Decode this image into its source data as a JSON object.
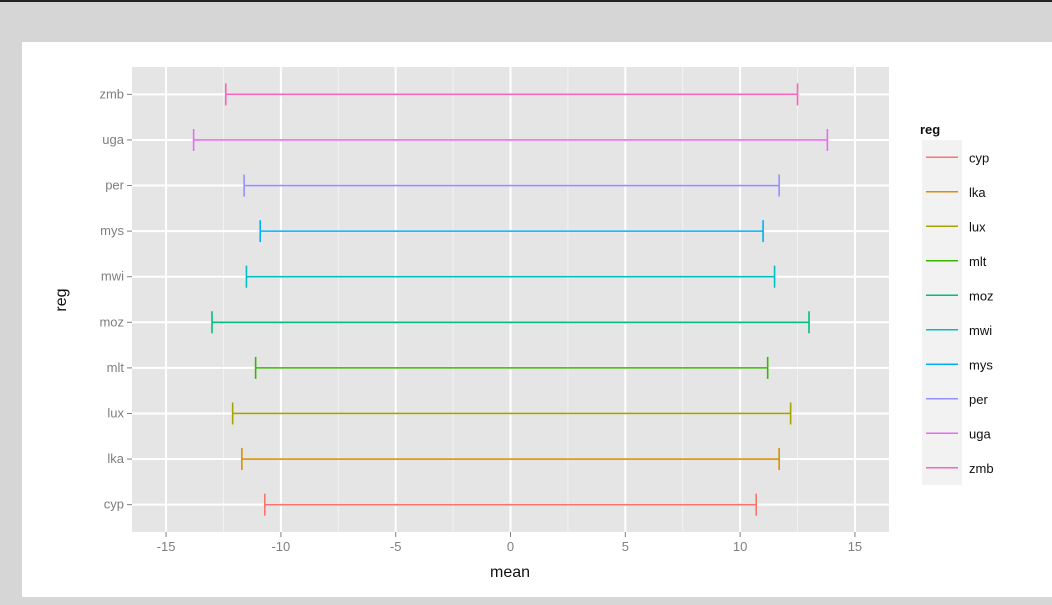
{
  "chart_data": {
    "type": "errorbar",
    "title": "",
    "xlabel": "mean",
    "ylabel": "reg",
    "xlim": [
      -15,
      15
    ],
    "x_ticks": [
      -15,
      -10,
      -5,
      0,
      5,
      10,
      15
    ],
    "grid": true,
    "legend": {
      "title": "reg",
      "position": "right"
    },
    "categories": [
      "cyp",
      "lka",
      "lux",
      "mlt",
      "moz",
      "mwi",
      "mys",
      "per",
      "uga",
      "zmb"
    ],
    "series": [
      {
        "name": "cyp",
        "low": -10.7,
        "high": 10.7,
        "color": "#F8766D"
      },
      {
        "name": "lka",
        "low": -11.7,
        "high": 11.7,
        "color": "#D89000"
      },
      {
        "name": "lux",
        "low": -12.1,
        "high": 12.2,
        "color": "#A3A500"
      },
      {
        "name": "mlt",
        "low": -11.1,
        "high": 11.2,
        "color": "#39B600"
      },
      {
        "name": "moz",
        "low": -13.0,
        "high": 13.0,
        "color": "#00BF7D"
      },
      {
        "name": "mwi",
        "low": -11.5,
        "high": 11.5,
        "color": "#00BFC4"
      },
      {
        "name": "mys",
        "low": -10.9,
        "high": 11.0,
        "color": "#00B0F6"
      },
      {
        "name": "per",
        "low": -11.6,
        "high": 11.7,
        "color": "#9590FF"
      },
      {
        "name": "uga",
        "low": -13.8,
        "high": 13.8,
        "color": "#E76BF3"
      },
      {
        "name": "zmb",
        "low": -12.4,
        "high": 12.5,
        "color": "#FF62BC"
      }
    ]
  }
}
